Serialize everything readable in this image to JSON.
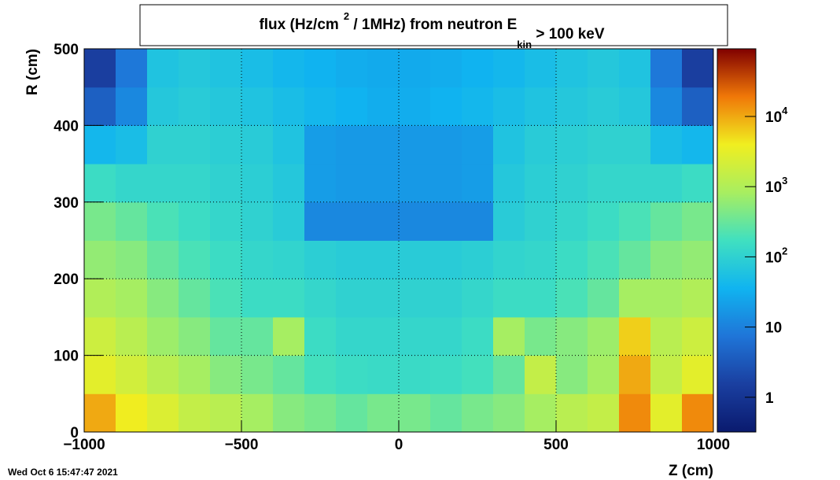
{
  "chart_data": {
    "type": "heatmap",
    "title": [
      {
        "text": "flux (Hz/cm"
      },
      {
        "text": "2",
        "sup": true
      },
      {
        "text": " / 1MHz) from   neutron  E"
      },
      {
        "text": "kin",
        "sub": true
      },
      {
        "text": " > 100 keV"
      }
    ],
    "x_label": "Z (cm)",
    "y_label": "R (cm)",
    "timestamp": "Wed Oct  6 15:47:47 2021",
    "xlim": [
      -1000,
      1000
    ],
    "ylim": [
      0,
      500
    ],
    "xticks": [
      {
        "value": -1000,
        "label": "−1000"
      },
      {
        "value": -500,
        "label": "−500"
      },
      0,
      500,
      1000
    ],
    "yticks": [
      0,
      100,
      200,
      300,
      400,
      500
    ],
    "grid": true,
    "x": [
      -950,
      -850,
      -750,
      -650,
      -550,
      -450,
      -350,
      -250,
      -150,
      -50,
      50,
      150,
      250,
      350,
      450,
      550,
      650,
      750,
      850,
      950
    ],
    "y": [
      25,
      75,
      125,
      175,
      225,
      275,
      325,
      375,
      425,
      475
    ],
    "z": [
      [
        10000,
        4000,
        2500,
        1500,
        1200,
        800,
        500,
        400,
        300,
        400,
        400,
        300,
        400,
        500,
        800,
        1200,
        1500,
        15000,
        3000,
        15000
      ],
      [
        3000,
        2000,
        1200,
        800,
        500,
        400,
        300,
        180,
        150,
        140,
        140,
        150,
        180,
        300,
        1500,
        500,
        800,
        10000,
        1500,
        3000
      ],
      [
        1800,
        1200,
        700,
        500,
        300,
        300,
        800,
        150,
        120,
        120,
        120,
        120,
        150,
        800,
        400,
        500,
        700,
        6000,
        1200,
        1800
      ],
      [
        1000,
        800,
        500,
        300,
        200,
        150,
        150,
        120,
        100,
        100,
        100,
        100,
        120,
        150,
        150,
        200,
        300,
        800,
        800,
        1000
      ],
      [
        600,
        500,
        300,
        200,
        150,
        120,
        110,
        90,
        80,
        80,
        80,
        80,
        90,
        110,
        120,
        150,
        200,
        300,
        500,
        600
      ],
      [
        400,
        300,
        200,
        150,
        120,
        100,
        80,
        12,
        12,
        12,
        12,
        12,
        12,
        80,
        100,
        120,
        150,
        200,
        300,
        400
      ],
      [
        150,
        120,
        120,
        120,
        100,
        90,
        70,
        20,
        18,
        18,
        18,
        18,
        20,
        70,
        90,
        100,
        120,
        120,
        120,
        150
      ],
      [
        40,
        50,
        100,
        100,
        90,
        80,
        60,
        20,
        18,
        18,
        18,
        18,
        20,
        60,
        80,
        90,
        100,
        100,
        50,
        40
      ],
      [
        4,
        12,
        70,
        80,
        70,
        60,
        50,
        40,
        35,
        30,
        30,
        35,
        40,
        50,
        60,
        70,
        80,
        70,
        12,
        4
      ],
      [
        1.5,
        8,
        60,
        70,
        60,
        50,
        40,
        35,
        30,
        28,
        28,
        30,
        35,
        40,
        50,
        60,
        70,
        60,
        8,
        1.5
      ]
    ],
    "zlim": [
      0.32,
      92000
    ],
    "zlog": true,
    "zticks": [
      {
        "value": 1,
        "label": "1"
      },
      {
        "value": 10,
        "label": "10"
      },
      {
        "value": 100,
        "label": "10",
        "sup": "2"
      },
      {
        "value": 1000,
        "label": "10",
        "sup": "3"
      },
      {
        "value": 10000,
        "label": "10",
        "sup": "4"
      }
    ],
    "colorscale": [
      "#0a1a6e",
      "#1a3fa0",
      "#1f75d8",
      "#10b4f0",
      "#40e0c0",
      "#a8ee60",
      "#f0ee20",
      "#f07808",
      "#800000"
    ]
  }
}
